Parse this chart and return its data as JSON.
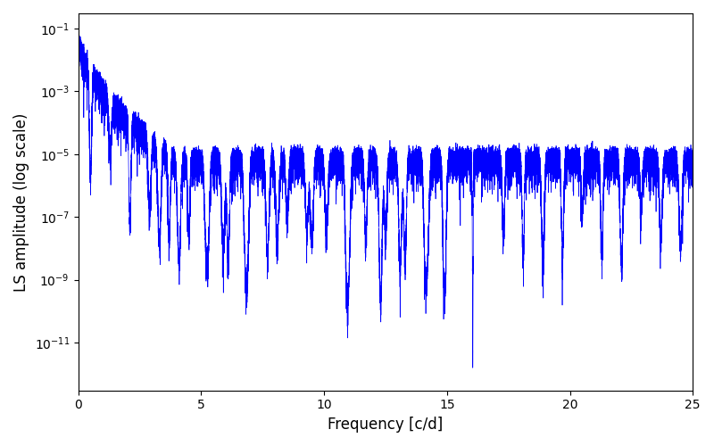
{
  "xlabel": "Frequency [c/d]",
  "ylabel": "LS amplitude (log scale)",
  "xlim": [
    0,
    25
  ],
  "ylim": [
    3e-13,
    0.3
  ],
  "line_color": "blue",
  "line_width": 0.5,
  "figsize": [
    8.0,
    5.0
  ],
  "dpi": 100,
  "bg_color": "white",
  "num_points": 20000,
  "freq_max": 25.0,
  "seed": 12345,
  "peak_amp_log": -1.15,
  "noise_floor_log": -5.1,
  "decay_power": 3.5,
  "transition_freq": 4.0,
  "deep_spike_freq": 16.05,
  "deep_spike_depth_log": -11.8,
  "yticks": [
    1e-11,
    1e-09,
    1e-07,
    1e-05,
    0.001,
    0.1
  ],
  "xticks": [
    0,
    5,
    10,
    15,
    20,
    25
  ]
}
